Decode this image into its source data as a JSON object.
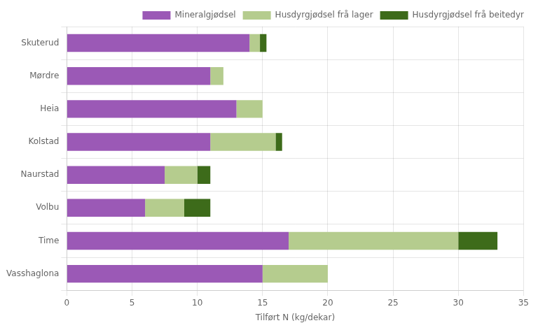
{
  "chart_data": {
    "type": "bar",
    "orientation": "horizontal",
    "stacked": true,
    "categories": [
      "Vasshaglona",
      "Time",
      "Volbu",
      "Naurstad",
      "Kolstad",
      "Heia",
      "Mørdre",
      "Skuterud"
    ],
    "series": [
      {
        "name": "Mineralgjødsel",
        "color": "#9B59B6",
        "values": [
          15.0,
          17.0,
          6.0,
          7.5,
          11.0,
          13.0,
          11.0,
          14.0
        ]
      },
      {
        "name": "Husdyrgjødsel frå lager",
        "color": "#B5CC8E",
        "values": [
          5.0,
          13.0,
          3.0,
          2.5,
          5.0,
          2.0,
          1.0,
          0.8
        ]
      },
      {
        "name": "Husdyrgjødsel frå beitedyr",
        "color": "#3D6B1A",
        "values": [
          0.0,
          3.0,
          2.0,
          1.0,
          0.5,
          0.0,
          0.0,
          0.5
        ]
      }
    ],
    "xlabel": "Tilført N (kg/dekar)",
    "xlim": [
      0,
      35
    ],
    "xticks": [
      0,
      5,
      10,
      15,
      20,
      25,
      30,
      35
    ],
    "grid": true,
    "legend": "upper right"
  }
}
